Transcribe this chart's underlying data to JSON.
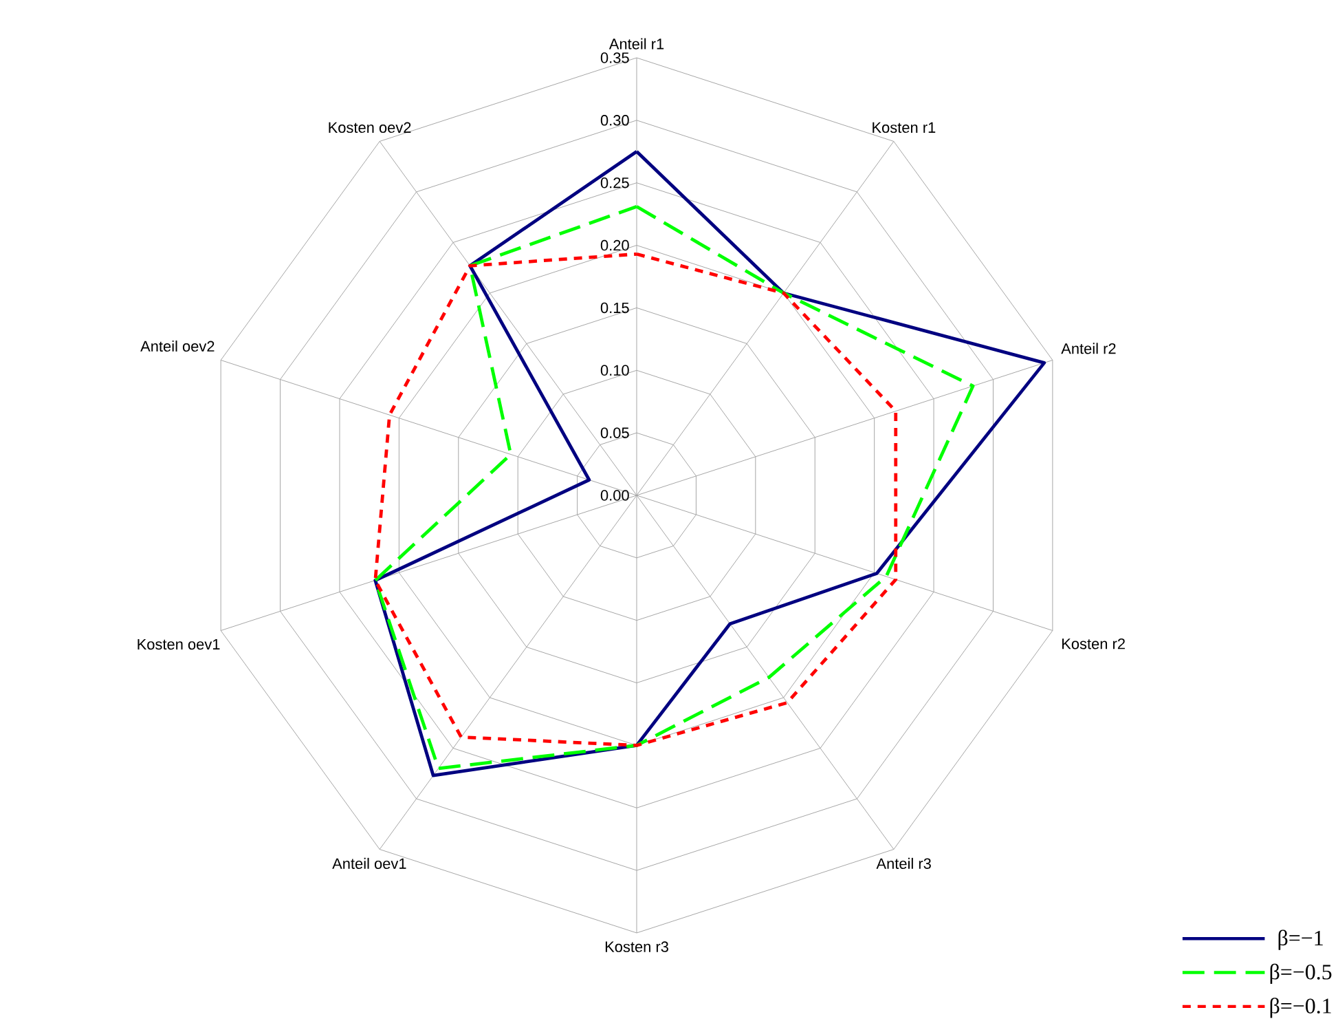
{
  "chart_data": {
    "type": "radar",
    "categories": [
      "Anteil r1",
      "Kosten r1",
      "Anteil r2",
      "Kosten r2",
      "Anteil r3",
      "Kosten r3",
      "Anteil oev1",
      "Kosten oev1",
      "Anteil oev2",
      "Kosten oev2"
    ],
    "series": [
      {
        "name": "β=−1",
        "color": "#000080",
        "line_style": "solid",
        "values": [
          0.275,
          0.2,
          0.343,
          0.202,
          0.127,
          0.2,
          0.277,
          0.22,
          0.04,
          0.227
        ]
      },
      {
        "name": "β=−0.5",
        "color": "#00ff00",
        "line_style": "dashed",
        "values": [
          0.231,
          0.2,
          0.283,
          0.21,
          0.18,
          0.2,
          0.27,
          0.22,
          0.106,
          0.227
        ]
      },
      {
        "name": "β=−0.1",
        "color": "#ff0000",
        "line_style": "dotted",
        "values": [
          0.193,
          0.2,
          0.218,
          0.218,
          0.205,
          0.2,
          0.239,
          0.22,
          0.208,
          0.227
        ]
      }
    ],
    "ylim": [
      0,
      0.35
    ],
    "yticks": [
      {
        "value": 0,
        "label": "0.00"
      },
      {
        "value": 0.05,
        "label": "0.05"
      },
      {
        "value": 0.1,
        "label": "0.10"
      },
      {
        "value": 0.15,
        "label": "0.15"
      },
      {
        "value": 0.2,
        "label": "0.20"
      },
      {
        "value": 0.25,
        "label": "0.25"
      },
      {
        "value": 0.3,
        "label": "0.30"
      },
      {
        "value": 0.35,
        "label": "0.35"
      }
    ],
    "grid": true,
    "legend": "bottom right"
  }
}
